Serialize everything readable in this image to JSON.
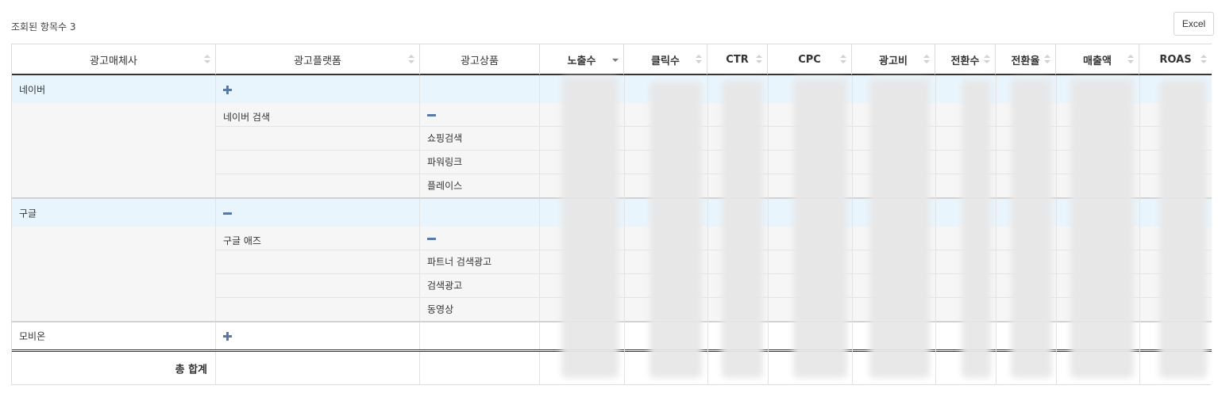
{
  "toolbar": {
    "count_label": "조회된 항목수 3",
    "excel_label": "Excel"
  },
  "table": {
    "columns": [
      {
        "label": "광고매체사",
        "sort": "none"
      },
      {
        "label": "광고플랫폼",
        "sort": "none"
      },
      {
        "label": "광고상품",
        "sort": "none"
      },
      {
        "label": "노출수",
        "sort": "desc"
      },
      {
        "label": "클릭수",
        "sort": "none"
      },
      {
        "label": "CTR",
        "sort": "none"
      },
      {
        "label": "CPC",
        "sort": "none"
      },
      {
        "label": "광고비",
        "sort": "none"
      },
      {
        "label": "전환수",
        "sort": "none"
      },
      {
        "label": "전환율",
        "sort": "none"
      },
      {
        "label": "매출액",
        "sort": "none"
      },
      {
        "label": "ROAS",
        "sort": "none"
      }
    ],
    "groups": [
      {
        "media": "네이버",
        "platform_toggle": "plus",
        "platform": "네이버 검색",
        "product_toggle": "minus",
        "products": [
          "쇼핑검색",
          "파워링크",
          "플레이스"
        ]
      },
      {
        "media": "구글",
        "platform_toggle": "minus",
        "platform": "구글 애즈",
        "product_toggle": "minus",
        "products": [
          "파트너 검색광고",
          "검색광고",
          "동영상"
        ]
      },
      {
        "media": "모비온",
        "platform_toggle": "plus"
      }
    ],
    "total_label": "총 합계"
  },
  "colors": {
    "group_row_bg": "#e9f5fd",
    "sub_row_bg": "#f6f6f6",
    "toggle_icon": "#5a78a8",
    "header_border": "#333333"
  },
  "icons": [
    "plus-icon",
    "minus-icon",
    "sort-icon"
  ]
}
